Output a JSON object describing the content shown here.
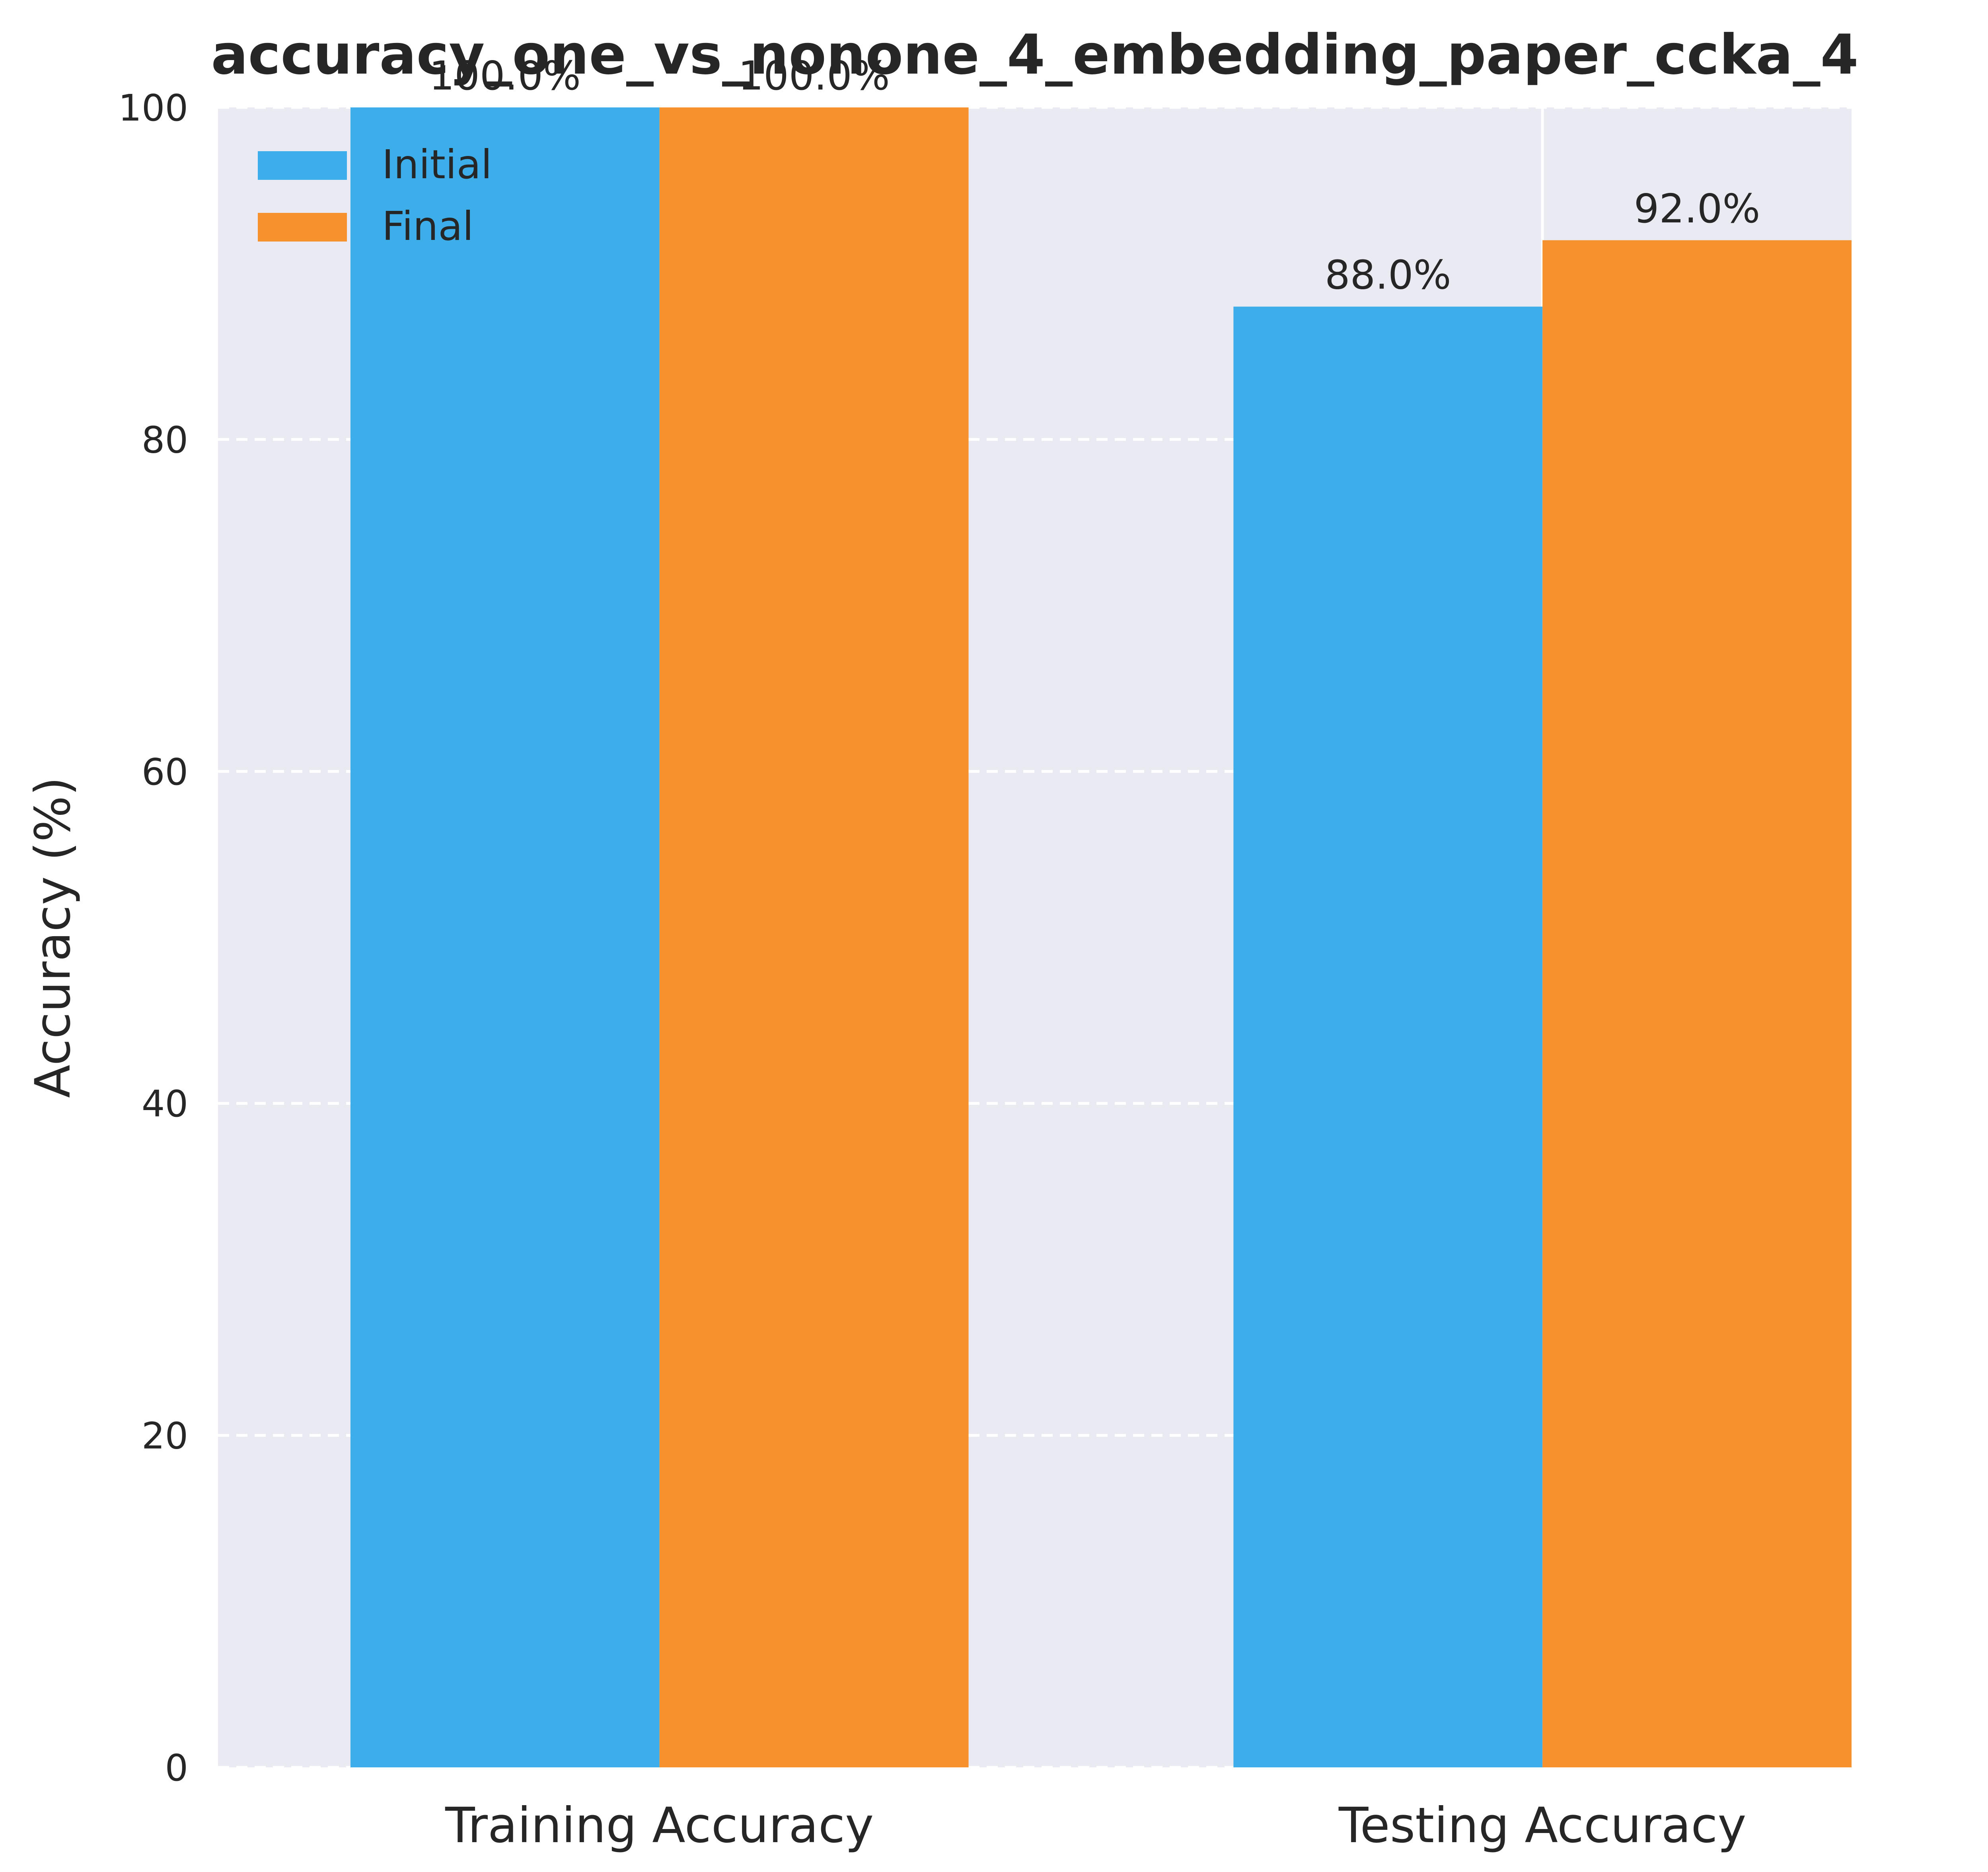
{
  "chart_data": {
    "type": "bar",
    "title": "accuracy_one_vs_nonone_4_embedding_paper_ccka_4",
    "xlabel": "",
    "ylabel": "Accuracy (%)",
    "categories": [
      "Training Accuracy",
      "Testing Accuracy"
    ],
    "series": [
      {
        "name": "Initial",
        "values": [
          100.0,
          88.0
        ],
        "labels": [
          "100.0%",
          "88.0%"
        ],
        "color": "#3daeea"
      },
      {
        "name": "Final",
        "values": [
          100.0,
          92.0
        ],
        "labels": [
          "100.0%",
          "92.0%"
        ],
        "color": "#f5922e"
      }
    ],
    "ylim": [
      0,
      100
    ],
    "yticks": [
      0,
      20,
      40,
      60,
      80,
      100
    ],
    "grid": "y-dashed",
    "legend_position": "top-left",
    "background": "#eaeaf2"
  }
}
